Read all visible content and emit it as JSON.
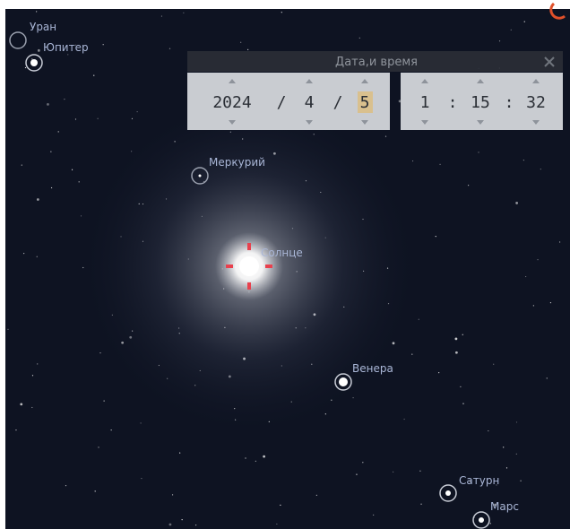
{
  "dialog": {
    "title": "Дата,и время",
    "date": {
      "year": 2024,
      "month": 4,
      "day": 5,
      "separator": "/"
    },
    "time": {
      "hour": 1,
      "minute": 15,
      "second": 32,
      "separator": ":"
    }
  },
  "objects": [
    "Уран",
    "Юпитер",
    "Меркурий",
    "Солнце",
    "Венера",
    "Сатурн",
    "Марс"
  ]
}
